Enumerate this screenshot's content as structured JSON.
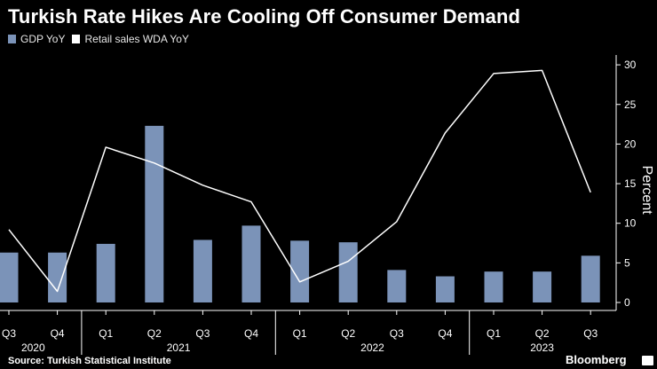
{
  "title": "Turkish Rate Hikes Are Cooling Off Consumer Demand",
  "source": "Source: Turkish Statistical Institute",
  "brand": "Bloomberg",
  "colors": {
    "background": "#000000",
    "bar": "#7b93b8",
    "line": "#ffffff",
    "text": "#ffffff"
  },
  "chart_data": {
    "type": "bar",
    "categories": [
      "Q3",
      "Q4",
      "Q1",
      "Q2",
      "Q3",
      "Q4",
      "Q1",
      "Q2",
      "Q3",
      "Q4",
      "Q1",
      "Q2",
      "Q3"
    ],
    "year_labels": [
      "2020",
      "2021",
      "2022",
      "2023"
    ],
    "series": [
      {
        "name": "GDP YoY",
        "type": "bar",
        "values": [
          6.3,
          6.3,
          7.4,
          22.3,
          7.9,
          9.7,
          7.8,
          7.6,
          4.1,
          3.3,
          3.9,
          3.9,
          5.9
        ]
      },
      {
        "name": "Retail sales WDA YoY",
        "type": "line",
        "values": [
          9.2,
          1.4,
          19.6,
          17.6,
          14.8,
          12.7,
          2.6,
          5.2,
          10.2,
          21.4,
          28.9,
          29.3,
          13.9
        ]
      }
    ],
    "ylabel": "Percent",
    "ylim": [
      -2,
      31
    ],
    "yticks": [
      0,
      5,
      10,
      15,
      20,
      25,
      30
    ],
    "y_axis_position": "right",
    "legend_position": "top-left"
  }
}
